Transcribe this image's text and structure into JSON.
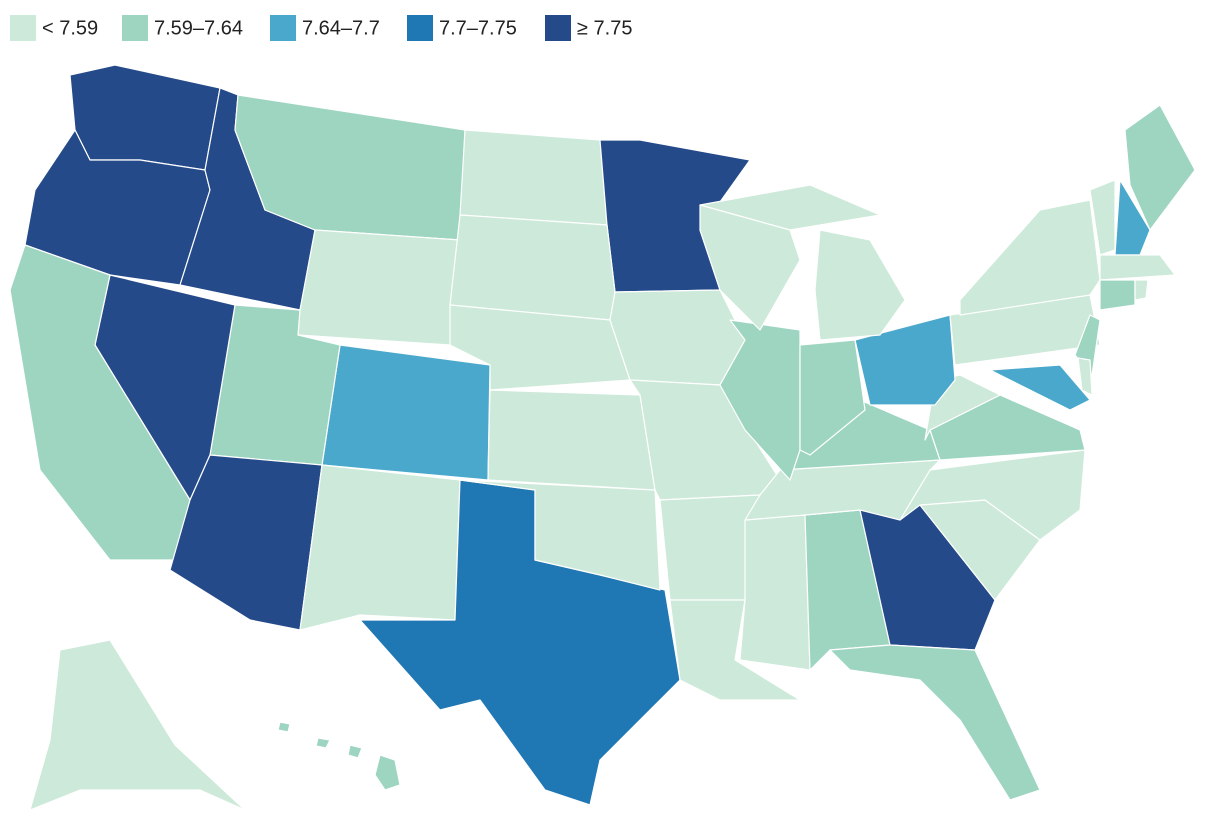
{
  "legend": [
    {
      "label": "< 7.59",
      "color": "#cce9d9"
    },
    {
      "label": "7.59–7.64",
      "color": "#9dd5c1"
    },
    {
      "label": "7.64–7.7",
      "color": "#4aa8cc"
    },
    {
      "label": "7.7–7.75",
      "color": "#1f77b4"
    },
    {
      "label": "≥ 7.75",
      "color": "#254a8a"
    }
  ]
}
